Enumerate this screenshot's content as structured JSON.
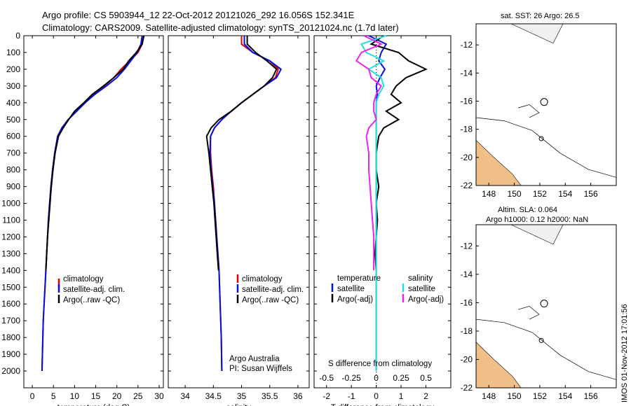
{
  "title": {
    "line1": "Argo profile: CS 5903944_12 22-Oct-2012 20121026_292 16.056S 152.341E",
    "line2": "Climatology: CARS2009. Satellite-adjusted climatology: synTS_20121024.nc (1.7d later)"
  },
  "side_text": "IMOS 01-Nov-2012 17:01:56",
  "colors": {
    "climatology": "#e00000",
    "satellite": "#0010e0",
    "argo": "#000000",
    "sal_satellite": "#20e0e0",
    "sal_argo": "#f020f0"
  },
  "chart_data": [
    {
      "type": "line",
      "panel": "temperature",
      "xlabel": "temperature (deg C)",
      "xlim": [
        -2,
        31
      ],
      "xticks": [
        0,
        5,
        10,
        15,
        20,
        25,
        30
      ],
      "ylim": [
        0,
        2100
      ],
      "yticks": [
        0,
        100,
        200,
        300,
        400,
        500,
        600,
        700,
        800,
        900,
        1000,
        1100,
        1200,
        1300,
        1400,
        1500,
        1600,
        1700,
        1800,
        1900,
        2000
      ],
      "legend": [
        "climatology",
        "satellite-adj. clim.",
        "Argo(..raw -QC)"
      ],
      "series": [
        {
          "name": "climatology",
          "x": [
            26.3,
            26.0,
            25.0,
            23.0,
            21.0,
            19.3,
            17.0,
            14.5,
            12.5,
            10.5,
            8.5,
            7.0,
            6.0,
            5.3,
            4.8,
            4.4,
            4.1,
            3.8,
            3.6,
            3.4,
            3.2,
            3.0,
            2.8,
            2.6,
            2.5,
            2.3
          ],
          "y": [
            0,
            50,
            100,
            150,
            200,
            250,
            300,
            350,
            400,
            450,
            500,
            550,
            600,
            700,
            800,
            900,
            1000,
            1100,
            1200,
            1300,
            1400,
            1500,
            1600,
            1700,
            1800,
            2000
          ]
        },
        {
          "name": "satellite-adj. clim.",
          "x": [
            26.0,
            25.7,
            24.8,
            23.3,
            21.8,
            20.0,
            17.5,
            14.8,
            12.5,
            10.5,
            8.5,
            7.0,
            6.0,
            5.3,
            4.8,
            4.4,
            4.1,
            3.8,
            3.6,
            3.4,
            3.2,
            3.0,
            2.8,
            2.6,
            2.5,
            2.3
          ],
          "y": [
            0,
            50,
            100,
            150,
            200,
            250,
            300,
            350,
            400,
            450,
            500,
            550,
            600,
            700,
            800,
            900,
            1000,
            1100,
            1200,
            1300,
            1400,
            1500,
            1600,
            1700,
            1800,
            2000
          ]
        },
        {
          "name": "Argo(..raw -QC)",
          "x": [
            26.4,
            26.0,
            24.6,
            22.8,
            21.5,
            19.3,
            16.8,
            14.2,
            12.2,
            10.0,
            8.6,
            7.3,
            6.2,
            5.4,
            4.9,
            4.5,
            4.2,
            3.9,
            3.6,
            3.4,
            3.2
          ],
          "y": [
            0,
            50,
            100,
            150,
            200,
            250,
            300,
            350,
            400,
            450,
            500,
            550,
            600,
            700,
            800,
            900,
            1000,
            1100,
            1200,
            1300,
            1400
          ]
        }
      ]
    },
    {
      "type": "line",
      "panel": "salinity",
      "xlabel": "salinity",
      "xlim": [
        33.7,
        36.2
      ],
      "xticks": [
        34,
        34.5,
        35,
        35.5,
        36
      ],
      "ylim": [
        0,
        2100
      ],
      "legend": [
        "climatology",
        "satellite-adj. clim.",
        "Argo(..raw -QC)"
      ],
      "annotation": [
        "Argo Australia",
        "PI: Susan Wijffels"
      ],
      "series": [
        {
          "name": "climatology",
          "x": [
            35.0,
            35.0,
            35.2,
            35.5,
            35.65,
            35.6,
            35.4,
            35.2,
            35.0,
            34.82,
            34.65,
            34.52,
            34.45,
            34.45,
            34.47,
            34.5,
            34.52,
            34.54,
            34.56,
            34.58,
            34.6,
            34.61,
            34.62,
            34.63,
            34.64,
            34.65
          ],
          "y": [
            0,
            50,
            100,
            150,
            200,
            250,
            300,
            350,
            400,
            450,
            500,
            550,
            600,
            700,
            800,
            900,
            1000,
            1100,
            1200,
            1300,
            1400,
            1500,
            1600,
            1700,
            1800,
            2000
          ]
        },
        {
          "name": "satellite-adj. clim.",
          "x": [
            35.05,
            35.05,
            35.2,
            35.5,
            35.7,
            35.62,
            35.4,
            35.2,
            35.0,
            34.82,
            34.65,
            34.52,
            34.45,
            34.44,
            34.46,
            34.49,
            34.52,
            34.54,
            34.56,
            34.58,
            34.6,
            34.61,
            34.62,
            34.63,
            34.64,
            34.65
          ],
          "y": [
            0,
            50,
            100,
            150,
            200,
            250,
            300,
            350,
            400,
            450,
            500,
            550,
            600,
            700,
            800,
            900,
            1000,
            1100,
            1200,
            1300,
            1400,
            1500,
            1600,
            1700,
            1800,
            2000
          ]
        },
        {
          "name": "Argo(..raw -QC)",
          "x": [
            35.1,
            35.1,
            35.25,
            35.45,
            35.62,
            35.55,
            35.4,
            35.2,
            35.0,
            34.82,
            34.6,
            34.46,
            34.38,
            34.42,
            34.45,
            34.48,
            34.51,
            34.53,
            34.55,
            34.57,
            34.59
          ],
          "y": [
            0,
            50,
            100,
            150,
            200,
            250,
            300,
            350,
            400,
            450,
            500,
            550,
            600,
            700,
            800,
            900,
            1000,
            1100,
            1200,
            1300,
            1400
          ]
        }
      ]
    },
    {
      "type": "line",
      "panel": "difference",
      "xlabel": "T difference from climatology",
      "xlabel_top": "S difference from climatology",
      "xlim": [
        -2.5,
        3
      ],
      "xticks": [
        -2,
        -1,
        0,
        1,
        2
      ],
      "xticks_s": [
        "-0.5",
        "-0.25",
        "0",
        "0.25",
        "0.5"
      ],
      "ylim": [
        0,
        2100
      ],
      "legend": {
        "temperature": [
          "satellite",
          "Argo(-adj)"
        ],
        "salinity": [
          "satellite",
          "Argo(-adj)"
        ]
      },
      "series": [
        {
          "name": "temperature satellite",
          "x": [
            -0.3,
            0.4,
            0.2,
            0.1,
            0.35,
            0.15,
            0.0,
            0.05,
            0.0,
            0.0,
            0.0,
            0.0,
            0.0,
            0.0,
            0.0,
            0.0,
            0.0,
            0.0,
            0.0,
            0.0,
            0.0,
            0.0,
            0.0,
            0.0,
            0.0,
            0.0
          ],
          "y": [
            0,
            50,
            100,
            150,
            200,
            250,
            300,
            350,
            400,
            450,
            500,
            550,
            600,
            700,
            800,
            900,
            1000,
            1100,
            1200,
            1300,
            1400,
            1500,
            1600,
            1700,
            1800,
            2000
          ]
        },
        {
          "name": "temperature Argo(-adj)",
          "x": [
            0.3,
            -0.2,
            0.9,
            1.3,
            2.0,
            1.2,
            0.8,
            0.6,
            1.0,
            0.4,
            0.9,
            0.3,
            0.1,
            0.0,
            0.0,
            0.1,
            0.0,
            0.05,
            0.0,
            -0.05,
            0.0
          ],
          "y": [
            0,
            50,
            100,
            150,
            200,
            250,
            300,
            350,
            400,
            450,
            500,
            550,
            600,
            700,
            800,
            900,
            1000,
            1100,
            1200,
            1300,
            1400
          ]
        },
        {
          "name": "salinity satellite",
          "x": [
            0.4,
            -0.6,
            -0.4,
            0.3,
            -0.3,
            0.2,
            0.3,
            0.1,
            0.0,
            0.0,
            0.0,
            0.0,
            0.0,
            0.0,
            0.0,
            0.0,
            0.0,
            0.0,
            0.0,
            0.0,
            0.0,
            0.0,
            0.0,
            0.0,
            0.0,
            0.0
          ],
          "y": [
            0,
            50,
            100,
            150,
            200,
            250,
            300,
            350,
            400,
            450,
            500,
            550,
            600,
            700,
            800,
            900,
            1000,
            1100,
            1200,
            1300,
            1400,
            1500,
            1600,
            1700,
            1800,
            2000
          ]
        },
        {
          "name": "salinity Argo(-adj)",
          "x": [
            -0.5,
            0.2,
            -0.6,
            -0.8,
            -0.3,
            -0.2,
            0.2,
            0.0,
            -0.1,
            -0.1,
            0.0,
            -0.3,
            -0.4,
            -0.3,
            -0.3,
            -0.25,
            -0.2,
            -0.15,
            -0.1,
            -0.1,
            -0.1
          ],
          "y": [
            0,
            50,
            100,
            150,
            200,
            250,
            300,
            350,
            400,
            450,
            500,
            550,
            600,
            700,
            800,
            900,
            1000,
            1100,
            1200,
            1300,
            1400
          ]
        }
      ]
    },
    {
      "type": "heatmap",
      "panel": "sst_map",
      "title": "sat. SST: 26 Argo: 26.5",
      "xlim": [
        147,
        158
      ],
      "ylim": [
        -22,
        -10.5
      ],
      "xticks": [
        148,
        150,
        152,
        154,
        156
      ],
      "yticks": [
        -12,
        -14,
        -16,
        -18,
        -20,
        -22
      ],
      "argo_location": [
        152.34,
        -16.06
      ]
    },
    {
      "type": "heatmap",
      "panel": "sla_map",
      "title": "Altim. SLA: 0.064",
      "title2": "Argo h1000: 0.12 h2000: NaN",
      "xlim": [
        147,
        158
      ],
      "ylim": [
        -22,
        -10.5
      ],
      "xticks": [
        148,
        150,
        152,
        154,
        156
      ],
      "yticks": [
        -12,
        -14,
        -16,
        -18,
        -20,
        -22
      ],
      "argo_location": [
        152.34,
        -16.06
      ]
    }
  ]
}
